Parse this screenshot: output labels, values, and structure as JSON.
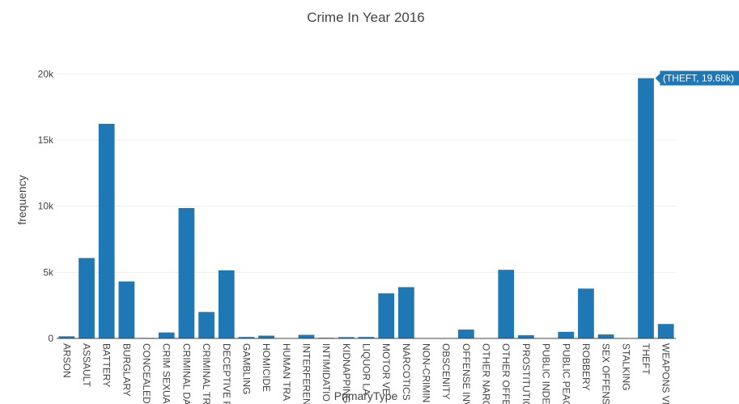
{
  "chart_data": {
    "type": "bar",
    "title": "Crime In Year 2016",
    "xlabel": "PrimaryType",
    "ylabel": "frequency",
    "ylim": [
      0,
      21000
    ],
    "yticks": [
      0,
      5000,
      10000,
      15000,
      20000
    ],
    "ytick_labels": [
      "0",
      "5k",
      "10k",
      "15k",
      "20k"
    ],
    "grid": true,
    "bar_color": "#1f77b4",
    "categories": [
      "ARSON",
      "ASSAULT",
      "BATTERY",
      "BURGLARY",
      "CONCEALED",
      "CRIM SEXUAL",
      "CRIMINAL DA",
      "CRIMINAL TR",
      "DECEPTIVE P",
      "GAMBLING",
      "HOMICIDE",
      "HUMAN TRA",
      "INTERFERENC",
      "INTIMIDATIO",
      "KIDNAPPING",
      "LIQUOR LA",
      "MOTOR VE",
      "NARCOTICS",
      "NON-CRIMIN",
      "OBSCENITY",
      "OFFENSE INV",
      "OTHER NARC",
      "OTHER OFFE",
      "PROSTITUTIO",
      "PUBLIC INDE",
      "PUBLIC PEAC",
      "ROBBERY",
      "SEX OFFENSE",
      "STALKING",
      "THEFT",
      "WEAPONS VI"
    ],
    "values": [
      160,
      6080,
      16230,
      4310,
      40,
      450,
      9860,
      2000,
      5150,
      110,
      210,
      20,
      270,
      50,
      100,
      110,
      3410,
      3880,
      20,
      30,
      670,
      20,
      5190,
      240,
      20,
      500,
      3770,
      300,
      30,
      19680,
      1090
    ],
    "hover": {
      "category": "THEFT",
      "label": "(THEFT, 19.68k)"
    }
  }
}
